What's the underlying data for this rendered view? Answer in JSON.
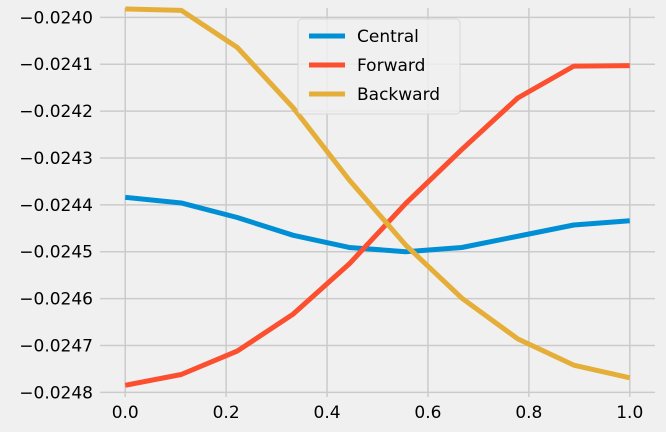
{
  "chart_data": {
    "type": "line",
    "title": "",
    "xlabel": "",
    "ylabel": "",
    "x": [
      0.0,
      0.111,
      0.222,
      0.333,
      0.444,
      0.556,
      0.667,
      0.778,
      0.889,
      1.0
    ],
    "xlim": [
      -0.05,
      1.05
    ],
    "ylim": [
      -0.02481,
      -0.02398
    ],
    "xticks": [
      0.0,
      0.2,
      0.4,
      0.6,
      0.8,
      1.0
    ],
    "xtick_labels": [
      "0.0",
      "0.2",
      "0.4",
      "0.6",
      "0.8",
      "1.0"
    ],
    "yticks": [
      -0.024,
      -0.0241,
      -0.0242,
      -0.0243,
      -0.0244,
      -0.0245,
      -0.0246,
      -0.0247,
      -0.0248
    ],
    "ytick_labels": [
      "−0.0240",
      "−0.0241",
      "−0.0242",
      "−0.0243",
      "−0.0244",
      "−0.0245",
      "−0.0246",
      "−0.0247",
      "−0.0248"
    ],
    "grid": true,
    "legend_position": "top-center",
    "series": [
      {
        "name": "Central",
        "color": "#008fd5",
        "values": [
          -0.024384,
          -0.024396,
          -0.024427,
          -0.024465,
          -0.024491,
          -0.0245,
          -0.024491,
          -0.024467,
          -0.024443,
          -0.024434
        ]
      },
      {
        "name": "Forward",
        "color": "#fc4f30",
        "values": [
          -0.024785,
          -0.024762,
          -0.024712,
          -0.024633,
          -0.024526,
          -0.024397,
          -0.024282,
          -0.024172,
          -0.024104,
          -0.024103
        ]
      },
      {
        "name": "Backward",
        "color": "#e5ae38",
        "values": [
          -0.023982,
          -0.023985,
          -0.024064,
          -0.024193,
          -0.024347,
          -0.024486,
          -0.024599,
          -0.024686,
          -0.024742,
          -0.024769
        ]
      }
    ]
  }
}
